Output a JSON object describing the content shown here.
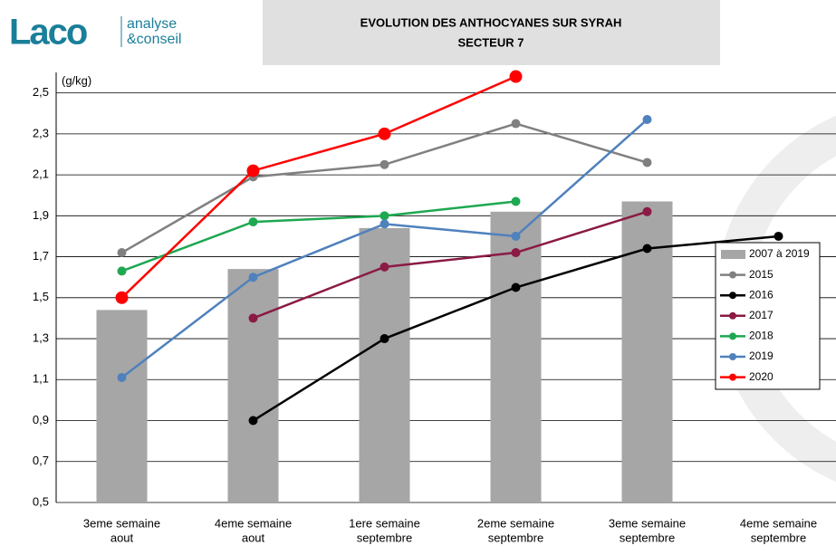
{
  "logo": {
    "name": "Laco",
    "tagline": [
      "analyse",
      "&conseil"
    ]
  },
  "chart_data": {
    "type": "bar",
    "title": "EVOLUTION DES ANTHOCYANES SUR SYRAH",
    "subtitle": "SECTEUR 7",
    "y_label": "(g/kg)",
    "categories": [
      [
        "3eme semaine",
        "aout"
      ],
      [
        "4eme semaine",
        "aout"
      ],
      [
        "1ere semaine",
        "septembre"
      ],
      [
        "2eme semaine",
        "septembre"
      ],
      [
        "3eme semaine",
        "septembre"
      ],
      [
        "4eme semaine",
        "septembre"
      ]
    ],
    "ylim": [
      0.5,
      2.6
    ],
    "yticks": [
      {
        "value": 0.5,
        "label": "0,5"
      },
      {
        "value": 0.7,
        "label": "0,7"
      },
      {
        "value": 0.9,
        "label": "0,9"
      },
      {
        "value": 1.1,
        "label": "1,1"
      },
      {
        "value": 1.3,
        "label": "1,3"
      },
      {
        "value": 1.5,
        "label": "1,5"
      },
      {
        "value": 1.7,
        "label": "1,7"
      },
      {
        "value": 1.9,
        "label": "1,9"
      },
      {
        "value": 2.1,
        "label": "2,1"
      },
      {
        "value": 2.3,
        "label": "2,3"
      },
      {
        "value": 2.5,
        "label": "2,5"
      }
    ],
    "grid": true,
    "legend": "right",
    "series": [
      {
        "name": "2007 à 2019",
        "type": "bar",
        "color": "#a6a6a6",
        "values": [
          1.44,
          1.64,
          1.84,
          1.92,
          1.97,
          null
        ]
      },
      {
        "name": "2015",
        "type": "line",
        "color": "#808080",
        "values": [
          1.72,
          2.09,
          2.15,
          2.35,
          2.16,
          null
        ]
      },
      {
        "name": "2016",
        "type": "line",
        "color": "#000000",
        "values": [
          null,
          0.9,
          1.3,
          1.55,
          1.74,
          1.8
        ]
      },
      {
        "name": "2017",
        "type": "line",
        "color": "#8b1a45",
        "values": [
          null,
          1.4,
          1.65,
          1.72,
          1.92,
          null
        ]
      },
      {
        "name": "2018",
        "type": "line",
        "color": "#1ea851",
        "values": [
          1.63,
          1.87,
          1.9,
          1.97,
          null,
          null
        ]
      },
      {
        "name": "2019",
        "type": "line",
        "color": "#4f81bd",
        "values": [
          1.11,
          1.6,
          1.86,
          1.8,
          2.37,
          null
        ]
      },
      {
        "name": "2020",
        "type": "line",
        "color": "#ff0000",
        "values": [
          1.5,
          2.12,
          2.3,
          2.58,
          null,
          null
        ]
      }
    ]
  }
}
